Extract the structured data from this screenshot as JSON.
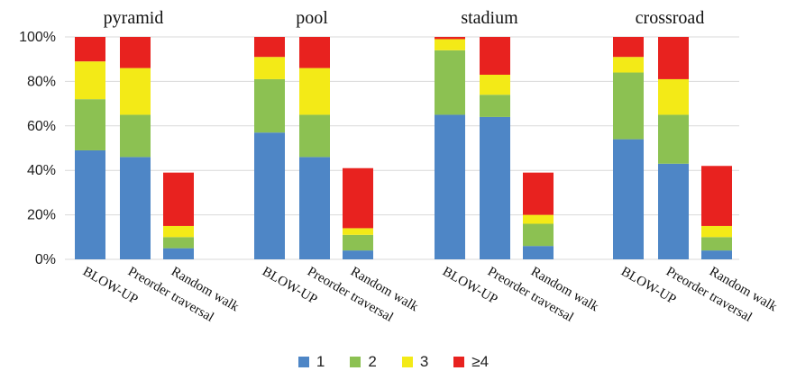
{
  "chart_data": {
    "type": "bar",
    "stacked": true,
    "ylim": [
      0,
      100
    ],
    "y_ticks": [
      "0%",
      "20%",
      "40%",
      "60%",
      "80%",
      "100%"
    ],
    "grid": true,
    "legend_position": "bottom",
    "series": [
      {
        "name": "1",
        "color": "#4e86c6"
      },
      {
        "name": "2",
        "color": "#8cc152"
      },
      {
        "name": "3",
        "color": "#f3ea17"
      },
      {
        "name": "≥4",
        "color": "#e8221f"
      }
    ],
    "panels": [
      {
        "title": "pyramid",
        "categories": [
          "BLOW-UP",
          "Preorder traversal",
          "Random walk"
        ],
        "values": [
          [
            49,
            23,
            17,
            11
          ],
          [
            46,
            19,
            21,
            14
          ],
          [
            5,
            5,
            5,
            24
          ]
        ]
      },
      {
        "title": "pool",
        "categories": [
          "BLOW-UP",
          "Preorder traversal",
          "Random walk"
        ],
        "values": [
          [
            57,
            24,
            10,
            9
          ],
          [
            46,
            19,
            21,
            14
          ],
          [
            4,
            7,
            3,
            27
          ]
        ]
      },
      {
        "title": "stadium",
        "categories": [
          "BLOW-UP",
          "Preorder traversal",
          "Random walk"
        ],
        "values": [
          [
            65,
            29,
            5,
            1
          ],
          [
            64,
            10,
            9,
            17
          ],
          [
            6,
            10,
            4,
            19
          ]
        ]
      },
      {
        "title": "crossroad",
        "categories": [
          "BLOW-UP",
          "Preorder traversal",
          "Random walk"
        ],
        "values": [
          [
            54,
            30,
            7,
            9
          ],
          [
            43,
            22,
            16,
            19
          ],
          [
            4,
            6,
            5,
            27
          ]
        ]
      }
    ]
  }
}
